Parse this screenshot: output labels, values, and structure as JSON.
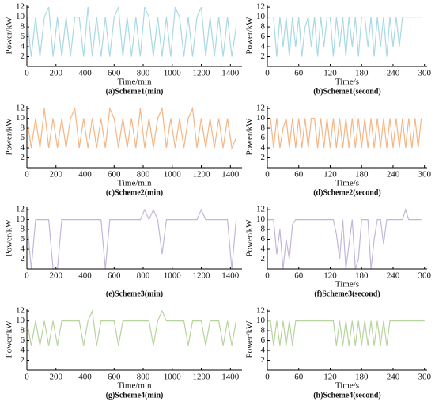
{
  "chart_data": [
    {
      "type": "line",
      "title": "(a)Scheme1(min)",
      "xlabel": "Time/min",
      "ylabel": "Power/kW",
      "color": "#a9d9e3",
      "x": [
        0,
        30,
        60,
        90,
        120,
        150,
        180,
        210,
        240,
        270,
        300,
        330,
        360,
        390,
        420,
        450,
        480,
        510,
        540,
        570,
        600,
        630,
        660,
        690,
        720,
        750,
        780,
        810,
        840,
        870,
        900,
        930,
        960,
        990,
        1020,
        1050,
        1080,
        1110,
        1140,
        1170,
        1200,
        1230,
        1260,
        1290,
        1320,
        1350,
        1380,
        1410,
        1440
      ],
      "values": [
        10,
        2,
        10,
        2,
        10,
        12,
        2,
        10,
        2,
        10,
        2,
        10,
        10,
        2,
        12,
        2,
        10,
        2,
        10,
        2,
        10,
        12,
        2,
        10,
        2,
        10,
        2,
        12,
        10,
        2,
        10,
        2,
        10,
        2,
        12,
        10,
        2,
        10,
        2,
        10,
        12,
        2,
        10,
        2,
        10,
        2,
        10,
        2,
        8
      ],
      "xlim": [
        0,
        1480
      ],
      "ylim": [
        0,
        12.5
      ],
      "xticks": [
        0,
        200,
        400,
        600,
        800,
        1000,
        1200,
        1400
      ],
      "yticks": [
        2,
        4,
        6,
        8,
        10,
        12
      ]
    },
    {
      "type": "line",
      "title": "(b)Scheme1(second)",
      "xlabel": "Time/s",
      "ylabel": "Power/kW",
      "color": "#a9d9e3",
      "x": [
        0,
        6,
        12,
        18,
        24,
        30,
        36,
        42,
        48,
        54,
        60,
        66,
        72,
        78,
        84,
        90,
        96,
        102,
        108,
        114,
        120,
        126,
        132,
        138,
        144,
        150,
        156,
        162,
        168,
        174,
        180,
        186,
        192,
        198,
        204,
        210,
        216,
        222,
        228,
        234,
        240,
        246,
        252,
        258,
        264,
        270,
        276,
        282,
        288,
        294,
        300
      ],
      "values": [
        null,
        null,
        10,
        2,
        10,
        4,
        10,
        2,
        10,
        4,
        10,
        2,
        8,
        10,
        4,
        10,
        2,
        10,
        4,
        10,
        10,
        2,
        10,
        4,
        10,
        2,
        10,
        4,
        10,
        2,
        10,
        10,
        4,
        10,
        2,
        10,
        4,
        10,
        2,
        10,
        4,
        10,
        4,
        10,
        10,
        10,
        10,
        10,
        10,
        10,
        null
      ],
      "xlim": [
        0,
        305
      ],
      "ylim": [
        0,
        12.5
      ],
      "xticks": [
        0,
        60,
        120,
        180,
        240,
        300
      ],
      "yticks": [
        2,
        4,
        6,
        8,
        10,
        12
      ]
    },
    {
      "type": "line",
      "title": "(c)Scheme2(min)",
      "xlabel": "Time/min",
      "ylabel": "Power/kW",
      "color": "#f6b585",
      "x": [
        0,
        30,
        60,
        90,
        120,
        150,
        180,
        210,
        240,
        270,
        300,
        330,
        360,
        390,
        420,
        450,
        480,
        510,
        540,
        570,
        600,
        630,
        660,
        690,
        720,
        750,
        780,
        810,
        840,
        870,
        900,
        930,
        960,
        990,
        1020,
        1050,
        1080,
        1110,
        1140,
        1170,
        1200,
        1230,
        1260,
        1290,
        1320,
        1350,
        1380,
        1410,
        1440
      ],
      "values": [
        10,
        4,
        10,
        4,
        12,
        4,
        10,
        4,
        10,
        4,
        10,
        12,
        4,
        10,
        4,
        10,
        4,
        10,
        4,
        12,
        10,
        4,
        10,
        4,
        10,
        4,
        12,
        4,
        10,
        4,
        10,
        12,
        4,
        10,
        4,
        10,
        4,
        10,
        12,
        4,
        10,
        4,
        10,
        4,
        10,
        4,
        10,
        4,
        6
      ],
      "xlim": [
        0,
        1480
      ],
      "ylim": [
        0,
        12.5
      ],
      "xticks": [
        0,
        200,
        400,
        600,
        800,
        1000,
        1200,
        1400
      ],
      "yticks": [
        2,
        4,
        6,
        8,
        10,
        12
      ]
    },
    {
      "type": "line",
      "title": "(d)Scheme2(second)",
      "xlabel": "Time/s",
      "ylabel": "Power/kW",
      "color": "#f6b585",
      "x": [
        0,
        6,
        12,
        18,
        24,
        30,
        36,
        42,
        48,
        54,
        60,
        66,
        72,
        78,
        84,
        90,
        96,
        102,
        108,
        114,
        120,
        126,
        132,
        138,
        144,
        150,
        156,
        162,
        168,
        174,
        180,
        186,
        192,
        198,
        204,
        210,
        216,
        222,
        228,
        234,
        240,
        246,
        252,
        258,
        264,
        270,
        276,
        282,
        288,
        294,
        300
      ],
      "values": [
        null,
        10,
        4,
        10,
        4,
        8,
        10,
        4,
        10,
        4,
        10,
        4,
        10,
        4,
        10,
        10,
        4,
        10,
        4,
        10,
        4,
        10,
        4,
        10,
        4,
        10,
        4,
        10,
        4,
        10,
        4,
        10,
        4,
        10,
        4,
        10,
        4,
        10,
        4,
        10,
        4,
        10,
        4,
        10,
        4,
        10,
        4,
        10,
        4,
        10,
        null
      ],
      "xlim": [
        0,
        305
      ],
      "ylim": [
        0,
        12.5
      ],
      "xticks": [
        0,
        60,
        120,
        180,
        240,
        300
      ],
      "yticks": [
        2,
        4,
        6,
        8,
        10,
        12
      ]
    },
    {
      "type": "line",
      "title": "(e)Scheme3(min)",
      "ylabel": "Power/kW",
      "color": "#c4b6da",
      "x": [
        0,
        30,
        60,
        90,
        120,
        150,
        180,
        210,
        240,
        270,
        300,
        330,
        360,
        390,
        420,
        450,
        480,
        510,
        540,
        570,
        600,
        630,
        660,
        690,
        720,
        750,
        780,
        810,
        840,
        870,
        900,
        930,
        960,
        990,
        1020,
        1050,
        1080,
        1110,
        1140,
        1170,
        1200,
        1230,
        1260,
        1290,
        1320,
        1350,
        1380,
        1410,
        1440
      ],
      "values": [
        10,
        0,
        10,
        10,
        10,
        10,
        0,
        0,
        10,
        10,
        10,
        10,
        10,
        10,
        10,
        10,
        10,
        10,
        0,
        10,
        10,
        10,
        10,
        10,
        10,
        10,
        10,
        12,
        10,
        12,
        10,
        3,
        10,
        10,
        10,
        10,
        10,
        10,
        10,
        10,
        12,
        10,
        10,
        10,
        10,
        10,
        10,
        0,
        10
      ],
      "xlim": [
        0,
        1480
      ],
      "ylim": [
        0,
        12.5
      ],
      "xticks": [
        0,
        200,
        400,
        600,
        800,
        1000,
        1200,
        1400
      ],
      "yticks": [
        2,
        4,
        6,
        8,
        10,
        12
      ]
    },
    {
      "type": "line",
      "title": "(f)Scheme3(second)",
      "xlabel": "Time/s",
      "ylabel": "Power/kW",
      "color": "#c4b6da",
      "x": [
        0,
        6,
        12,
        18,
        24,
        30,
        36,
        42,
        48,
        54,
        60,
        66,
        72,
        78,
        84,
        90,
        96,
        102,
        108,
        114,
        120,
        126,
        132,
        138,
        144,
        150,
        156,
        162,
        168,
        174,
        180,
        186,
        192,
        198,
        204,
        210,
        216,
        222,
        228,
        234,
        240,
        246,
        252,
        258,
        264,
        270,
        276,
        282,
        288,
        294,
        300
      ],
      "values": [
        10,
        10,
        10,
        3,
        8,
        0,
        6,
        2,
        9,
        10,
        10,
        10,
        10,
        10,
        10,
        10,
        10,
        10,
        10,
        10,
        10,
        10,
        7,
        2,
        10,
        0,
        5,
        10,
        0,
        2,
        10,
        10,
        10,
        0,
        6,
        10,
        10,
        5,
        10,
        10,
        10,
        10,
        10,
        10,
        12,
        10,
        10,
        10,
        10,
        10,
        null
      ],
      "xlim": [
        0,
        305
      ],
      "ylim": [
        0,
        12.5
      ],
      "xticks": [
        0,
        60,
        120,
        180,
        240,
        300
      ],
      "yticks": [
        2,
        4,
        6,
        8,
        10,
        12
      ]
    },
    {
      "type": "line",
      "title": "(g)Scheme4(min)",
      "xlabel": "Time/min",
      "ylabel": "Power/kW",
      "color": "#b7d49c",
      "x": [
        0,
        30,
        60,
        90,
        120,
        150,
        180,
        210,
        240,
        270,
        300,
        330,
        360,
        390,
        420,
        450,
        480,
        510,
        540,
        570,
        600,
        630,
        660,
        690,
        720,
        750,
        780,
        810,
        840,
        870,
        900,
        930,
        960,
        990,
        1020,
        1050,
        1080,
        1110,
        1140,
        1170,
        1200,
        1230,
        1260,
        1290,
        1320,
        1350,
        1380,
        1410,
        1440
      ],
      "values": [
        10,
        5,
        10,
        5,
        10,
        5,
        10,
        5,
        10,
        10,
        10,
        10,
        10,
        5,
        10,
        12,
        5,
        10,
        10,
        10,
        10,
        5,
        10,
        10,
        10,
        10,
        10,
        10,
        10,
        5,
        10,
        12,
        10,
        10,
        10,
        10,
        10,
        5,
        10,
        10,
        10,
        5,
        10,
        10,
        10,
        5,
        10,
        5,
        10
      ],
      "xlim": [
        0,
        1480
      ],
      "ylim": [
        0,
        12.5
      ],
      "xticks": [
        0,
        200,
        400,
        600,
        800,
        1000,
        1200,
        1400
      ],
      "yticks": [
        2,
        4,
        6,
        8,
        10,
        12
      ]
    },
    {
      "type": "line",
      "title": "(h)Scheme4(second)",
      "xlabel": "Time/s",
      "ylabel": "Power/kW",
      "color": "#b7d49c",
      "x": [
        0,
        6,
        12,
        18,
        24,
        30,
        36,
        42,
        48,
        54,
        60,
        66,
        72,
        78,
        84,
        90,
        96,
        102,
        108,
        114,
        120,
        126,
        132,
        138,
        144,
        150,
        156,
        162,
        168,
        174,
        180,
        186,
        192,
        198,
        204,
        210,
        216,
        222,
        228,
        234,
        240,
        246,
        252,
        258,
        264,
        270,
        276,
        282,
        288,
        294,
        300
      ],
      "values": [
        10,
        10,
        5,
        10,
        5,
        10,
        5,
        10,
        5,
        10,
        10,
        10,
        10,
        10,
        10,
        10,
        10,
        10,
        10,
        10,
        10,
        10,
        5,
        10,
        5,
        10,
        5,
        10,
        5,
        10,
        5,
        10,
        5,
        10,
        5,
        10,
        5,
        10,
        5,
        10,
        10,
        10,
        10,
        10,
        10,
        10,
        10,
        10,
        10,
        10,
        10
      ],
      "xlim": [
        0,
        305
      ],
      "ylim": [
        0,
        12.5
      ],
      "xticks": [
        0,
        60,
        120,
        180,
        240,
        300
      ],
      "yticks": [
        2,
        4,
        6,
        8,
        10,
        12
      ]
    }
  ]
}
